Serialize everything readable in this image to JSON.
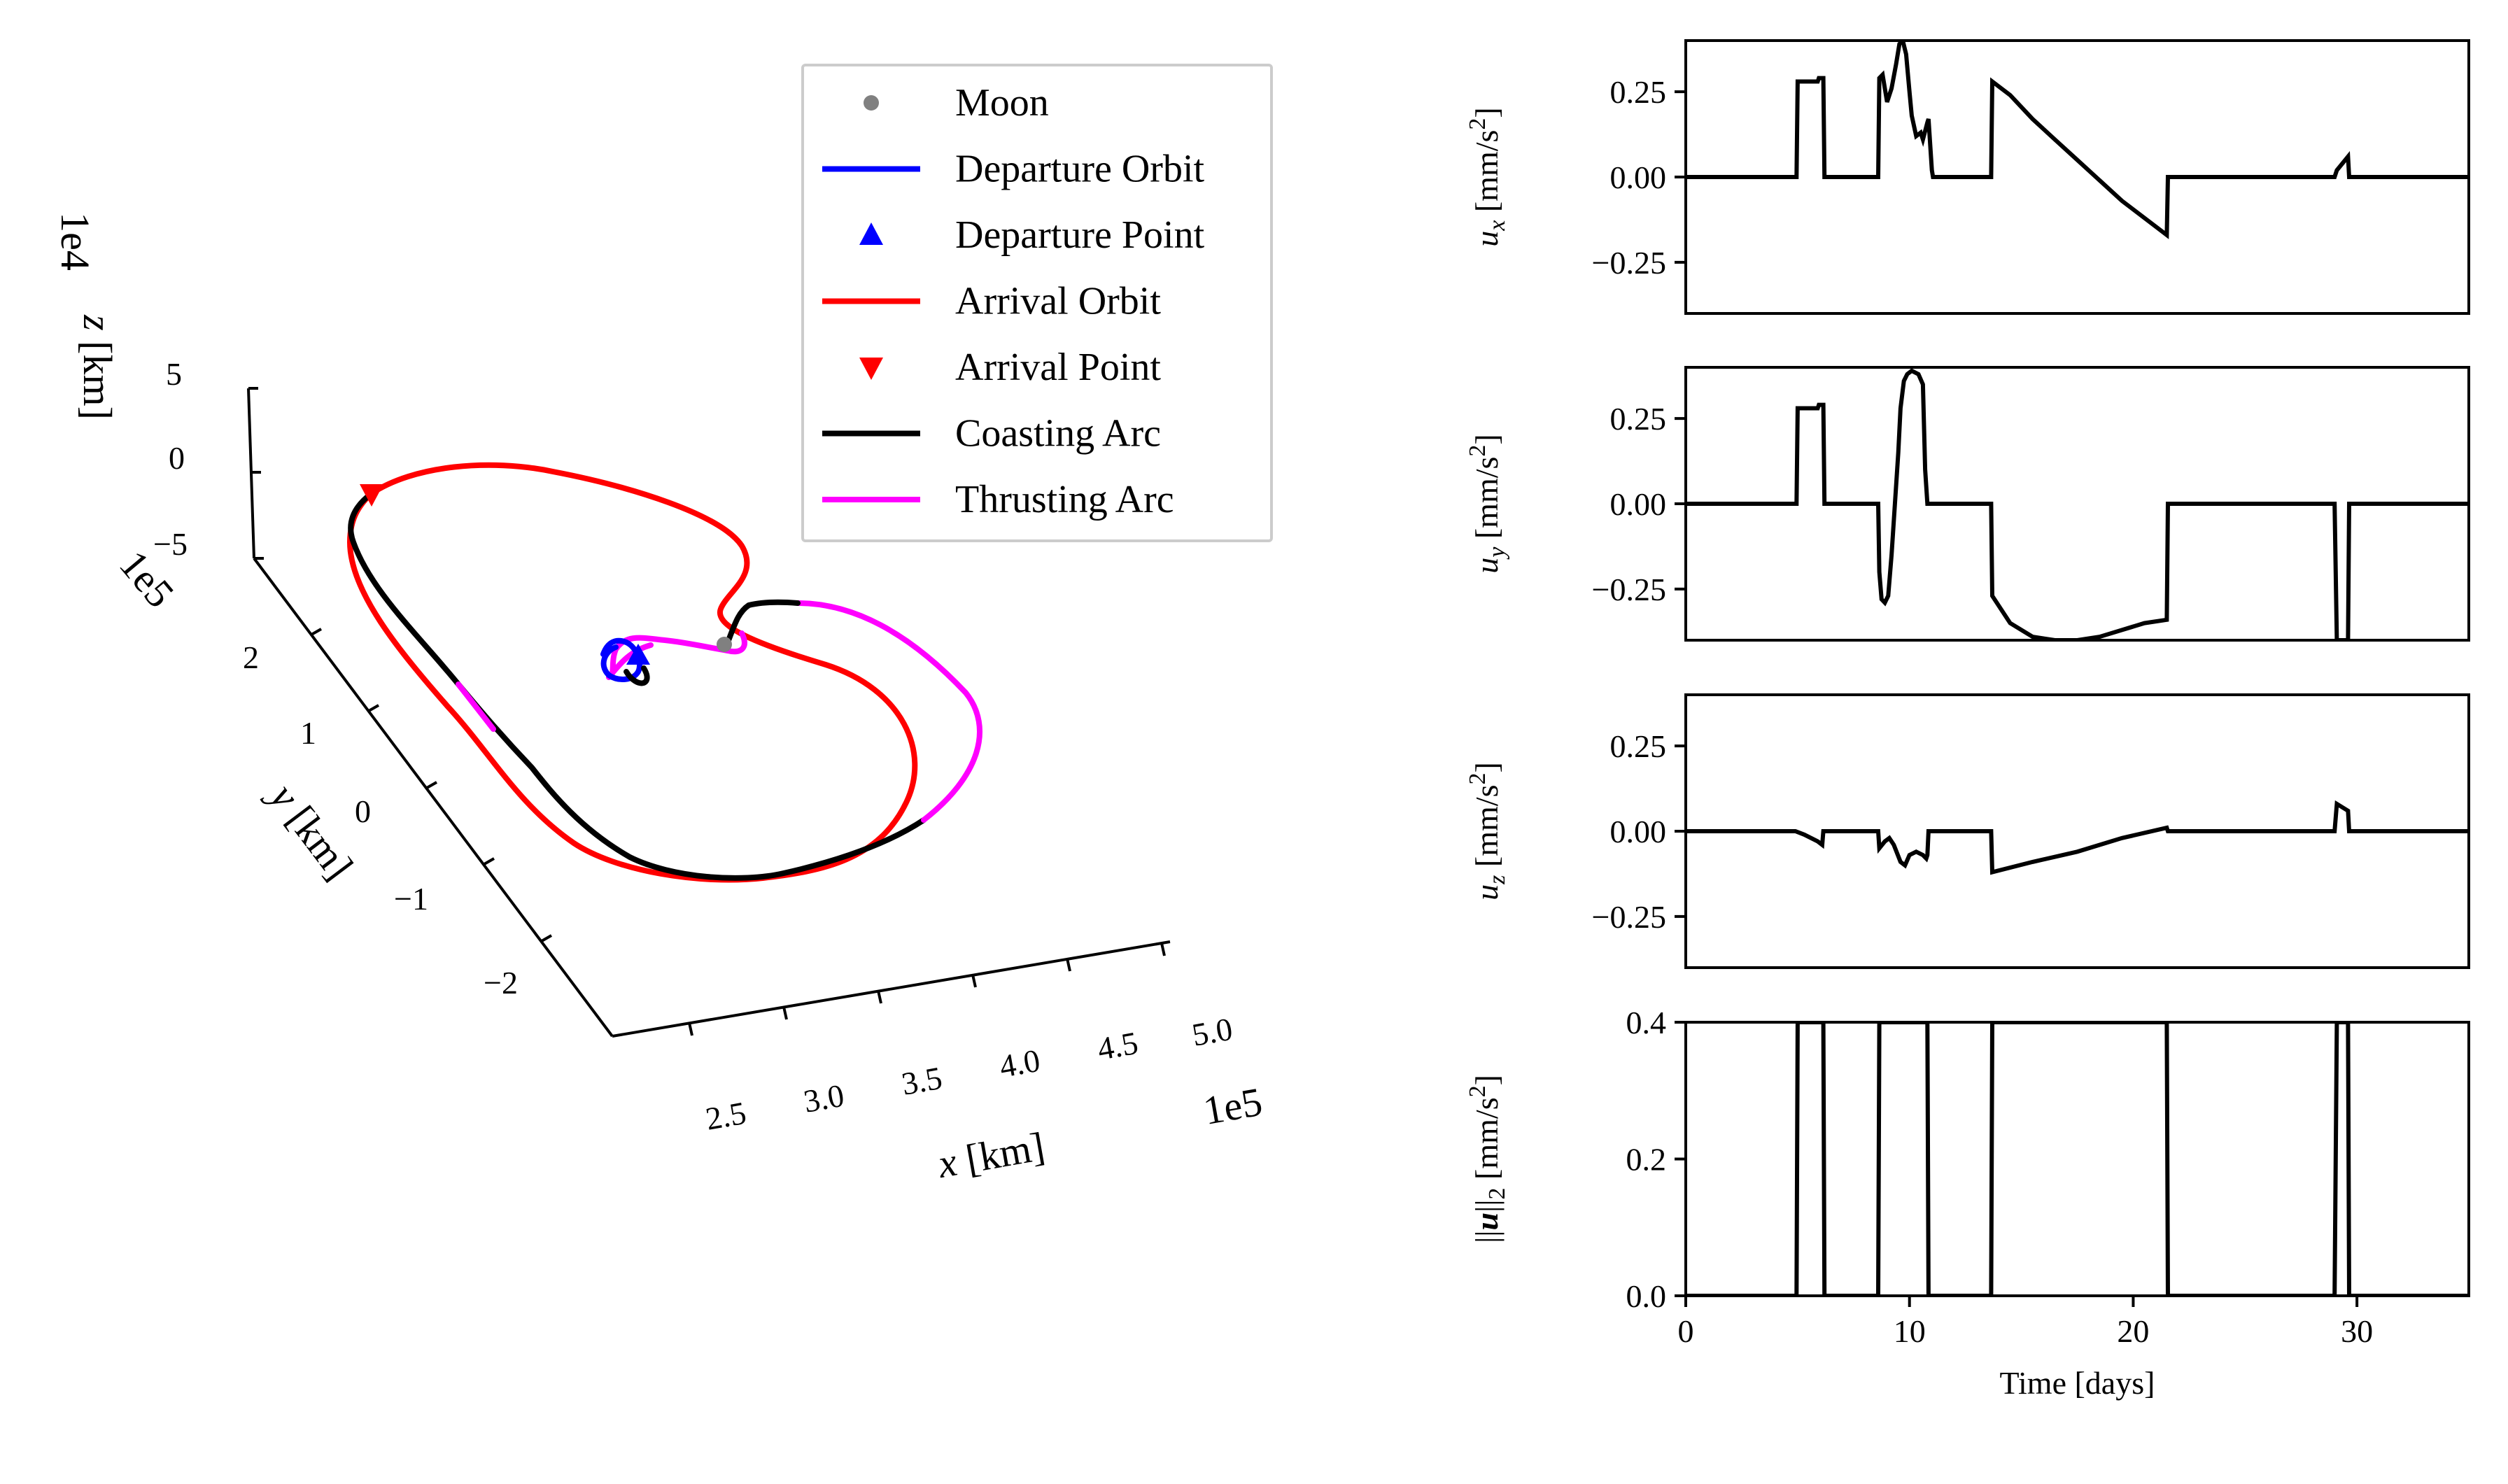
{
  "colors": {
    "moon": "#808080",
    "departure": "#0000ff",
    "arrival": "#ff0000",
    "coast": "#000000",
    "thrust": "#ff00ff",
    "frame": "#000000"
  },
  "panel_3d": {
    "legend": [
      {
        "label": "Moon",
        "marker": "dot",
        "color": "#808080"
      },
      {
        "label": "Departure Orbit",
        "marker": "line",
        "color": "#0000ff"
      },
      {
        "label": "Departure Point",
        "marker": "triangle-up",
        "color": "#0000ff"
      },
      {
        "label": "Arrival Orbit",
        "marker": "line",
        "color": "#ff0000"
      },
      {
        "label": "Arrival Point",
        "marker": "triangle-down",
        "color": "#ff0000"
      },
      {
        "label": "Coasting Arc",
        "marker": "line",
        "color": "#000000"
      },
      {
        "label": "Thrusting Arc",
        "marker": "line",
        "color": "#ff00ff"
      }
    ],
    "z_axis": {
      "label": "z [km]",
      "offset": "1e4",
      "ticks": [
        "5",
        "0",
        "−5"
      ]
    },
    "y_axis": {
      "label": "y [km]",
      "offset": "1e5",
      "ticks": [
        "2",
        "1",
        "0",
        "−1",
        "−2"
      ]
    },
    "x_axis": {
      "label": "x [km]",
      "offset": "1e5",
      "ticks": [
        "2.5",
        "3.0",
        "3.5",
        "4.0",
        "4.5",
        "5.0"
      ]
    }
  },
  "chart_data": [
    {
      "type": "line",
      "ylabel": "u_x [mm/s^2]",
      "ylabel_parts": {
        "sym": "u",
        "sub": "x",
        "unit": "[mm/s",
        "sup": "2",
        "close": "]"
      },
      "xlim": [
        0,
        35
      ],
      "ylim": [
        -0.4,
        0.4
      ],
      "yticks": [
        0.25,
        0.0,
        -0.25
      ],
      "ytick_labels": [
        "0.25",
        "0.00",
        "−0.25"
      ],
      "series": [
        {
          "color": "#000000",
          "x": [
            0,
            4.95,
            5.0,
            5.9,
            5.95,
            6.15,
            6.2,
            8.6,
            8.65,
            8.8,
            9.0,
            9.2,
            9.4,
            9.55,
            9.7,
            9.85,
            10.0,
            10.1,
            10.3,
            10.5,
            10.6,
            10.8,
            10.85,
            11.0,
            11.05,
            13.65,
            13.7,
            14.5,
            15.5,
            16.5,
            17.5,
            18.5,
            19.5,
            20.5,
            21.5,
            21.55,
            29.0,
            29.1,
            29.6,
            29.65,
            35
          ],
          "y": [
            0,
            0,
            0.28,
            0.28,
            0.29,
            0.29,
            0,
            0,
            0.29,
            0.3,
            0.22,
            0.26,
            0.33,
            0.39,
            0.4,
            0.36,
            0.25,
            0.18,
            0.12,
            0.13,
            0.11,
            0.16,
            0.17,
            0.02,
            0,
            0,
            0.28,
            0.24,
            0.17,
            0.11,
            0.05,
            -0.01,
            -0.07,
            -0.12,
            -0.17,
            0,
            0,
            0.02,
            0.06,
            0,
            0
          ]
        }
      ]
    },
    {
      "type": "line",
      "ylabel": "u_y [mm/s^2]",
      "ylabel_parts": {
        "sym": "u",
        "sub": "y",
        "unit": "[mm/s",
        "sup": "2",
        "close": "]"
      },
      "xlim": [
        0,
        35
      ],
      "ylim": [
        -0.4,
        0.4
      ],
      "yticks": [
        0.25,
        0.0,
        -0.25
      ],
      "ytick_labels": [
        "0.25",
        "0.00",
        "−0.25"
      ],
      "series": [
        {
          "color": "#000000",
          "x": [
            0,
            4.95,
            5.0,
            5.9,
            5.95,
            6.15,
            6.2,
            8.6,
            8.65,
            8.75,
            8.9,
            9.05,
            9.2,
            9.35,
            9.5,
            9.6,
            9.75,
            9.9,
            10.1,
            10.4,
            10.6,
            10.7,
            10.8,
            13.65,
            13.7,
            14.5,
            15.5,
            16.5,
            17.5,
            18.5,
            19.5,
            20.5,
            21.5,
            21.55,
            29.0,
            29.1,
            29.6,
            29.65,
            35
          ],
          "y": [
            0,
            0,
            0.28,
            0.28,
            0.29,
            0.29,
            0,
            0,
            -0.2,
            -0.28,
            -0.29,
            -0.27,
            -0.15,
            0.0,
            0.15,
            0.28,
            0.36,
            0.38,
            0.39,
            0.38,
            0.35,
            0.1,
            0,
            0,
            -0.27,
            -0.35,
            -0.39,
            -0.4,
            -0.4,
            -0.39,
            -0.37,
            -0.35,
            -0.34,
            0,
            0,
            -0.4,
            -0.4,
            0,
            0
          ]
        }
      ]
    },
    {
      "type": "line",
      "ylabel": "u_z [mm/s^2]",
      "ylabel_parts": {
        "sym": "u",
        "sub": "z",
        "unit": "[mm/s",
        "sup": "2",
        "close": "]"
      },
      "xlim": [
        0,
        35
      ],
      "ylim": [
        -0.4,
        0.4
      ],
      "yticks": [
        0.25,
        0.0,
        -0.25
      ],
      "ytick_labels": [
        "0.25",
        "0.00",
        "−0.25"
      ],
      "series": [
        {
          "color": "#000000",
          "x": [
            0,
            4.9,
            5.3,
            5.9,
            6.1,
            6.15,
            8.6,
            8.65,
            8.9,
            9.1,
            9.3,
            9.6,
            9.8,
            10.0,
            10.3,
            10.6,
            10.75,
            10.8,
            10.85,
            13.65,
            13.7,
            15.5,
            17.5,
            19.5,
            21.5,
            21.55,
            29.0,
            29.1,
            29.6,
            29.65,
            35
          ],
          "y": [
            0,
            0,
            -0.01,
            -0.03,
            -0.04,
            0,
            0,
            -0.05,
            -0.03,
            -0.02,
            -0.04,
            -0.09,
            -0.1,
            -0.07,
            -0.06,
            -0.07,
            -0.08,
            -0.07,
            0,
            0,
            -0.12,
            -0.09,
            -0.06,
            -0.02,
            0.01,
            0,
            0,
            0.08,
            0.06,
            0,
            0
          ]
        }
      ]
    },
    {
      "type": "line",
      "ylabel": "||u||_2 [mm/s^2]",
      "ylabel_parts": {
        "sym": "u",
        "sub": "2",
        "unit": "[mm/s",
        "sup": "2",
        "close": "]"
      },
      "xlabel": "Time [days]",
      "xlim": [
        0,
        35
      ],
      "ylim": [
        0.0,
        0.4
      ],
      "yticks": [
        0.4,
        0.2,
        0.0
      ],
      "ytick_labels": [
        "0.4",
        "0.2",
        "0.0"
      ],
      "xticks": [
        0,
        10,
        20,
        30
      ],
      "xtick_labels": [
        "0",
        "10",
        "20",
        "30"
      ],
      "series": [
        {
          "color": "#000000",
          "x": [
            0,
            4.95,
            5.0,
            6.15,
            6.2,
            8.6,
            8.65,
            10.8,
            10.85,
            13.65,
            13.7,
            21.5,
            21.55,
            29.0,
            29.1,
            29.6,
            29.65,
            35
          ],
          "y": [
            0,
            0,
            0.4,
            0.4,
            0,
            0,
            0.4,
            0.4,
            0,
            0,
            0.4,
            0.4,
            0,
            0,
            0.4,
            0.4,
            0,
            0
          ]
        }
      ]
    }
  ]
}
